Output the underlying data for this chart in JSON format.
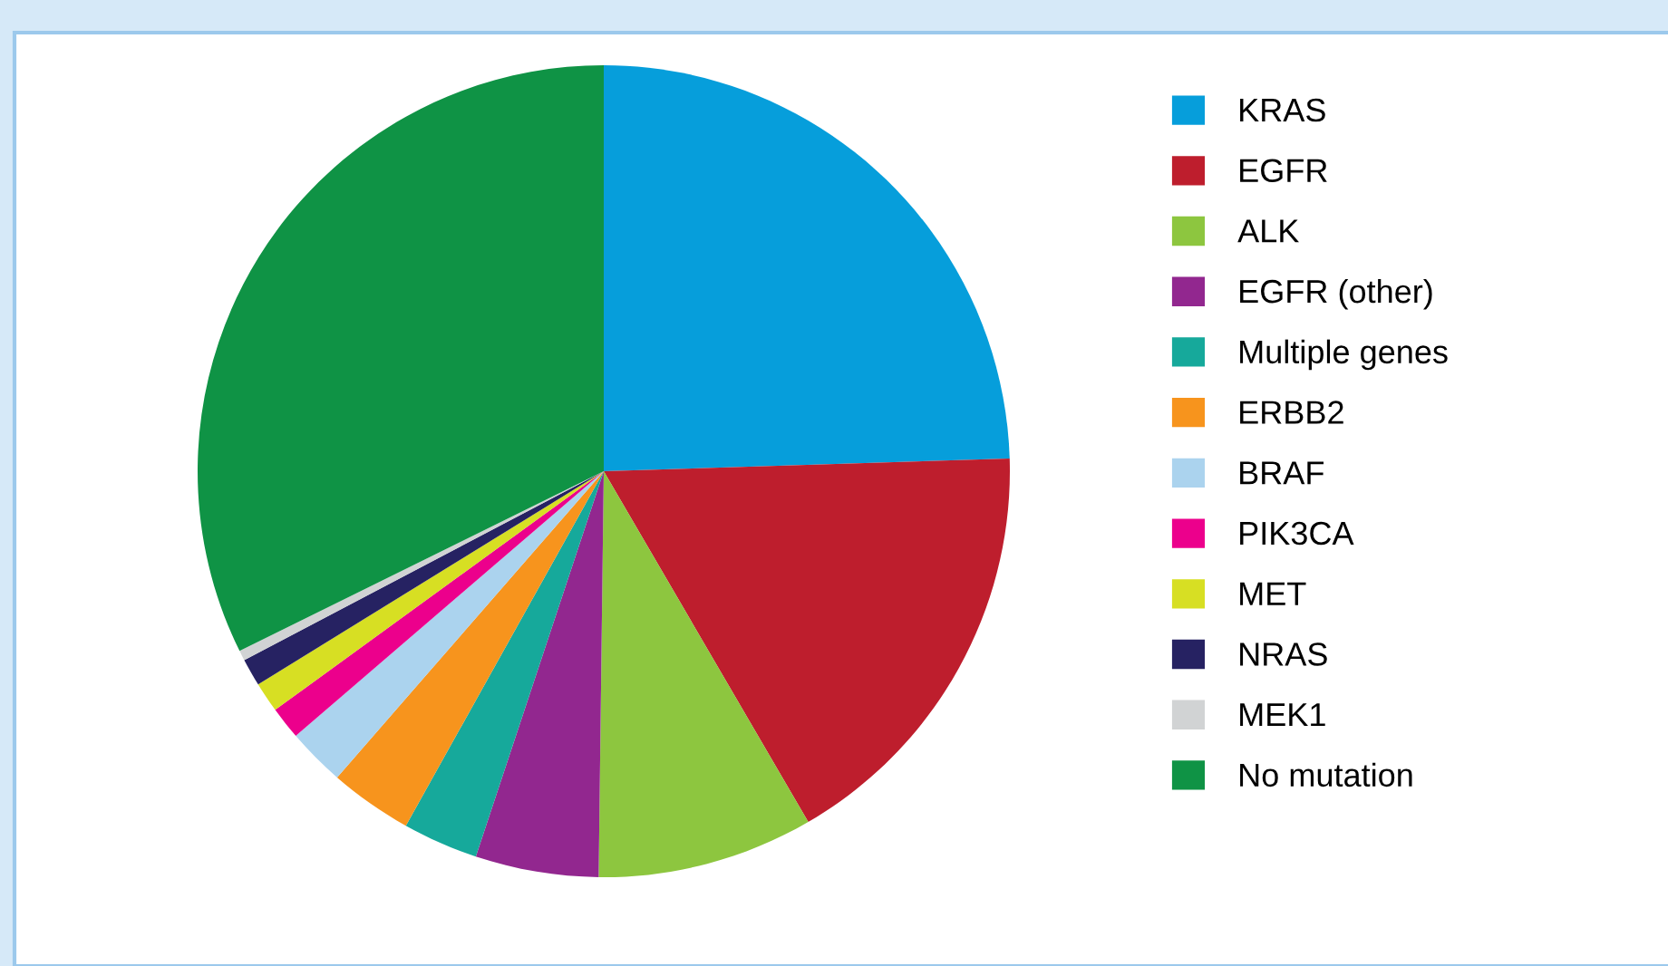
{
  "chart_data": {
    "type": "pie",
    "categories": [
      "KRAS",
      "EGFR",
      "ALK",
      "EGFR (other)",
      "Multiple genes",
      "ERBB2",
      "BRAF",
      "PIK3CA",
      "MET",
      "NRAS",
      "MEK1",
      "No mutation"
    ],
    "values": [
      24.5,
      17.1,
      8.6,
      4.9,
      3.0,
      3.3,
      2.3,
      1.3,
      1.2,
      1.1,
      0.4,
      32.3
    ],
    "colors": [
      "#069edb",
      "#be1e2d",
      "#8dc63f",
      "#92278f",
      "#16a99b",
      "#f7941d",
      "#abd3ee",
      "#ec008c",
      "#d7df23",
      "#262262",
      "#d1d3d4",
      "#0f9345"
    ],
    "legend": "right"
  }
}
